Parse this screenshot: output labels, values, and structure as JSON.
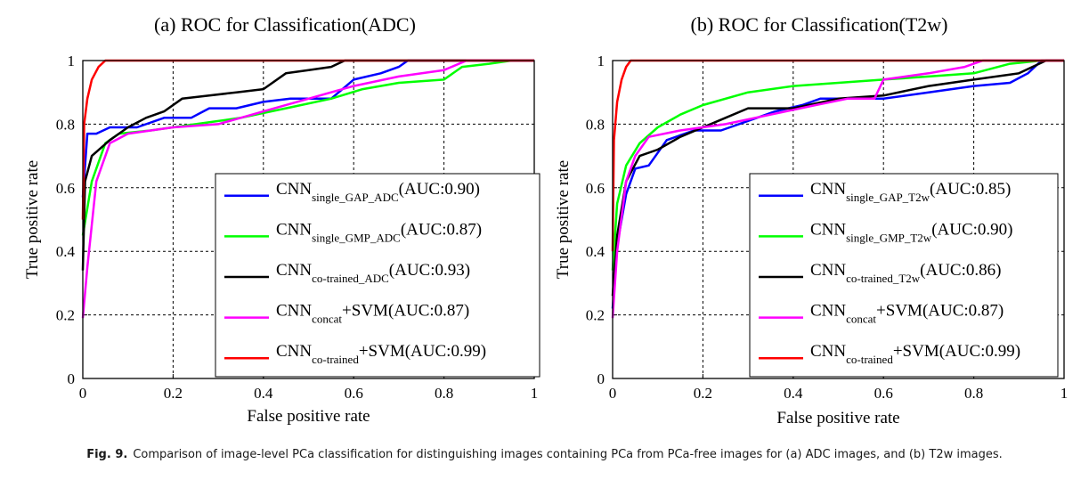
{
  "caption": {
    "label": "Fig. 9.",
    "text": "Comparison of image-level PCa classification for distinguishing images containing PCa from PCa-free images for (a) ADC images, and (b) T2w images."
  },
  "chart_data": [
    {
      "type": "line",
      "title": "(a)  ROC for Classification(ADC)",
      "xlabel": "False positive rate",
      "ylabel": "True positive rate",
      "xlim": [
        0,
        1
      ],
      "ylim": [
        0,
        1
      ],
      "xticks": [
        "0",
        "0.2",
        "0.4",
        "0.6",
        "0.8",
        "1"
      ],
      "yticks": [
        "0",
        "0.2",
        "0.4",
        "0.6",
        "0.8",
        "1"
      ],
      "grid": true,
      "legend_position": "bottom-right",
      "series": [
        {
          "name": "CNN",
          "sub": "single_GAP_ADC",
          "auc": "(AUC:0.90)",
          "color": "#0000ff",
          "points": [
            [
              0,
              0.57
            ],
            [
              0.01,
              0.77
            ],
            [
              0.03,
              0.77
            ],
            [
              0.06,
              0.79
            ],
            [
              0.12,
              0.79
            ],
            [
              0.18,
              0.82
            ],
            [
              0.24,
              0.82
            ],
            [
              0.28,
              0.85
            ],
            [
              0.34,
              0.85
            ],
            [
              0.4,
              0.87
            ],
            [
              0.46,
              0.88
            ],
            [
              0.55,
              0.88
            ],
            [
              0.6,
              0.94
            ],
            [
              0.66,
              0.96
            ],
            [
              0.7,
              0.98
            ],
            [
              0.72,
              1.0
            ],
            [
              1,
              1
            ]
          ]
        },
        {
          "name": "CNN",
          "sub": "single_GMP_ADC",
          "auc": "(AUC:0.87)",
          "color": "#00ff00",
          "points": [
            [
              0,
              0.45
            ],
            [
              0.02,
              0.62
            ],
            [
              0.05,
              0.74
            ],
            [
              0.08,
              0.77
            ],
            [
              0.15,
              0.78
            ],
            [
              0.25,
              0.8
            ],
            [
              0.35,
              0.82
            ],
            [
              0.45,
              0.85
            ],
            [
              0.55,
              0.88
            ],
            [
              0.62,
              0.91
            ],
            [
              0.7,
              0.93
            ],
            [
              0.8,
              0.94
            ],
            [
              0.84,
              0.98
            ],
            [
              0.9,
              0.99
            ],
            [
              0.95,
              1.0
            ],
            [
              1,
              1
            ]
          ]
        },
        {
          "name": "CNN",
          "sub": "co-trained_ADC",
          "auc": "(AUC:0.93)",
          "color": "#000000",
          "points": [
            [
              0,
              0.34
            ],
            [
              0.005,
              0.62
            ],
            [
              0.02,
              0.7
            ],
            [
              0.06,
              0.75
            ],
            [
              0.1,
              0.79
            ],
            [
              0.14,
              0.82
            ],
            [
              0.18,
              0.84
            ],
            [
              0.22,
              0.88
            ],
            [
              0.28,
              0.89
            ],
            [
              0.34,
              0.9
            ],
            [
              0.4,
              0.91
            ],
            [
              0.45,
              0.96
            ],
            [
              0.5,
              0.97
            ],
            [
              0.55,
              0.98
            ],
            [
              0.58,
              1.0
            ],
            [
              1,
              1
            ]
          ]
        },
        {
          "name": "CNN",
          "sub": "concat",
          "suffix": "+SVM",
          "auc": "(AUC:0.87)",
          "color": "#ff00ff",
          "points": [
            [
              0,
              0.19
            ],
            [
              0.01,
              0.35
            ],
            [
              0.03,
              0.62
            ],
            [
              0.06,
              0.74
            ],
            [
              0.1,
              0.77
            ],
            [
              0.2,
              0.79
            ],
            [
              0.3,
              0.8
            ],
            [
              0.4,
              0.84
            ],
            [
              0.5,
              0.88
            ],
            [
              0.6,
              0.92
            ],
            [
              0.7,
              0.95
            ],
            [
              0.8,
              0.97
            ],
            [
              0.85,
              1.0
            ],
            [
              1,
              1
            ]
          ]
        },
        {
          "name": "CNN",
          "sub": "co-trained",
          "suffix": "+SVM",
          "auc": "(AUC:0.99)",
          "color": "#ff0000",
          "points": [
            [
              0,
              0.5
            ],
            [
              0.003,
              0.8
            ],
            [
              0.01,
              0.88
            ],
            [
              0.02,
              0.94
            ],
            [
              0.035,
              0.98
            ],
            [
              0.05,
              1.0
            ],
            [
              1,
              1
            ]
          ]
        }
      ]
    },
    {
      "type": "line",
      "title": "(b)  ROC for Classification(T2w)",
      "xlabel": "False positive rate",
      "ylabel": "True positive rate",
      "xlim": [
        0,
        1
      ],
      "ylim": [
        0,
        1
      ],
      "xticks": [
        "0",
        "0.2",
        "0.4",
        "0.6",
        "0.8",
        "1"
      ],
      "yticks": [
        "0",
        "0.2",
        "0.4",
        "0.6",
        "0.8",
        "1"
      ],
      "grid": true,
      "legend_position": "bottom-right",
      "series": [
        {
          "name": "CNN",
          "sub": "single_GAP_T2w",
          "auc": "(AUC:0.85)",
          "color": "#0000ff",
          "points": [
            [
              0,
              0.22
            ],
            [
              0.01,
              0.42
            ],
            [
              0.03,
              0.58
            ],
            [
              0.05,
              0.66
            ],
            [
              0.08,
              0.67
            ],
            [
              0.12,
              0.75
            ],
            [
              0.18,
              0.78
            ],
            [
              0.24,
              0.78
            ],
            [
              0.3,
              0.81
            ],
            [
              0.36,
              0.84
            ],
            [
              0.42,
              0.86
            ],
            [
              0.46,
              0.88
            ],
            [
              0.6,
              0.88
            ],
            [
              0.7,
              0.9
            ],
            [
              0.8,
              0.92
            ],
            [
              0.88,
              0.93
            ],
            [
              0.92,
              0.96
            ],
            [
              0.95,
              1.0
            ],
            [
              1,
              1
            ]
          ]
        },
        {
          "name": "CNN",
          "sub": "single_GMP_T2w",
          "auc": "(AUC:0.90)",
          "color": "#00ff00",
          "points": [
            [
              0,
              0.34
            ],
            [
              0.01,
              0.55
            ],
            [
              0.03,
              0.67
            ],
            [
              0.06,
              0.74
            ],
            [
              0.1,
              0.79
            ],
            [
              0.15,
              0.83
            ],
            [
              0.2,
              0.86
            ],
            [
              0.3,
              0.9
            ],
            [
              0.4,
              0.92
            ],
            [
              0.5,
              0.93
            ],
            [
              0.6,
              0.94
            ],
            [
              0.7,
              0.95
            ],
            [
              0.8,
              0.96
            ],
            [
              0.88,
              0.99
            ],
            [
              0.95,
              1.0
            ],
            [
              1,
              1
            ]
          ]
        },
        {
          "name": "CNN",
          "sub": "co-trained_T2w",
          "auc": "(AUC:0.86)",
          "color": "#000000",
          "points": [
            [
              0,
              0.26
            ],
            [
              0.01,
              0.45
            ],
            [
              0.03,
              0.62
            ],
            [
              0.06,
              0.7
            ],
            [
              0.1,
              0.72
            ],
            [
              0.15,
              0.76
            ],
            [
              0.2,
              0.79
            ],
            [
              0.25,
              0.82
            ],
            [
              0.3,
              0.85
            ],
            [
              0.4,
              0.85
            ],
            [
              0.5,
              0.88
            ],
            [
              0.6,
              0.89
            ],
            [
              0.7,
              0.92
            ],
            [
              0.8,
              0.94
            ],
            [
              0.9,
              0.96
            ],
            [
              0.96,
              1.0
            ],
            [
              1,
              1
            ]
          ]
        },
        {
          "name": "CNN",
          "sub": "concat",
          "suffix": "+SVM",
          "auc": "(AUC:0.87)",
          "color": "#ff00ff",
          "points": [
            [
              0,
              0.19
            ],
            [
              0.01,
              0.4
            ],
            [
              0.03,
              0.62
            ],
            [
              0.05,
              0.7
            ],
            [
              0.08,
              0.76
            ],
            [
              0.15,
              0.78
            ],
            [
              0.25,
              0.8
            ],
            [
              0.35,
              0.83
            ],
            [
              0.45,
              0.86
            ],
            [
              0.52,
              0.88
            ],
            [
              0.58,
              0.88
            ],
            [
              0.6,
              0.94
            ],
            [
              0.7,
              0.96
            ],
            [
              0.78,
              0.98
            ],
            [
              0.82,
              1.0
            ],
            [
              1,
              1
            ]
          ]
        },
        {
          "name": "CNN",
          "sub": "co-trained",
          "suffix": "+SVM",
          "auc": "(AUC:0.99)",
          "color": "#ff0000",
          "points": [
            [
              0,
              0.4
            ],
            [
              0.003,
              0.75
            ],
            [
              0.01,
              0.87
            ],
            [
              0.02,
              0.94
            ],
            [
              0.03,
              0.98
            ],
            [
              0.04,
              1.0
            ],
            [
              1,
              1
            ]
          ]
        }
      ]
    }
  ]
}
